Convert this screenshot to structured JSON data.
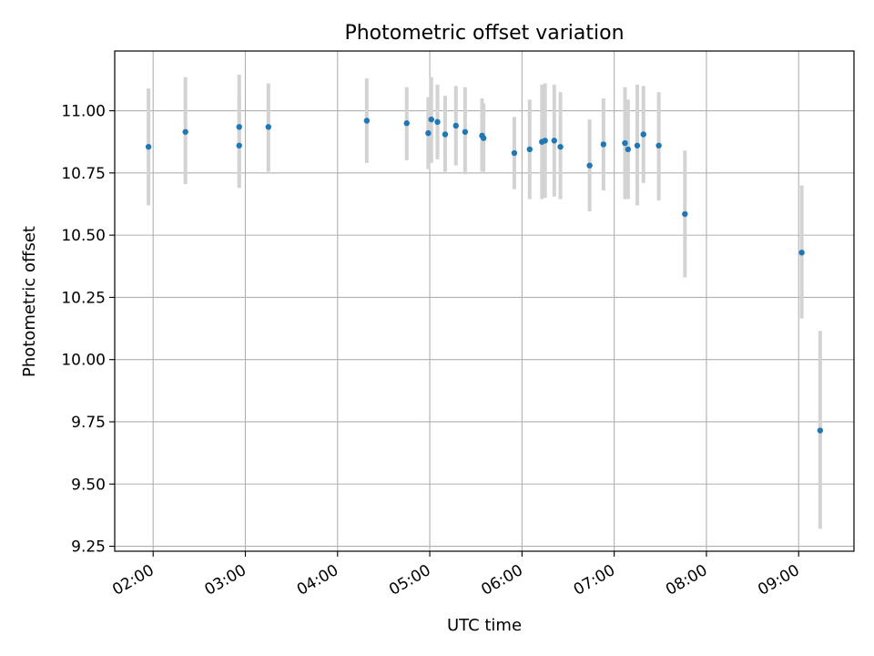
{
  "chart_data": {
    "type": "scatter",
    "title": "Photometric offset variation",
    "xlabel": "UTC time",
    "ylabel": "Photometric offset",
    "x_axis_kind": "time",
    "xlim": [
      "01:35",
      "09:36"
    ],
    "ylim": [
      9.23,
      11.24
    ],
    "grid": true,
    "x_ticks": [
      "02:00",
      "03:00",
      "04:00",
      "05:00",
      "06:00",
      "07:00",
      "08:00",
      "09:00"
    ],
    "y_ticks": [
      9.25,
      9.5,
      9.75,
      10.0,
      10.25,
      10.5,
      10.75,
      11.0
    ],
    "y_tick_labels": [
      "9.25",
      "9.50",
      "9.75",
      "10.00",
      "10.25",
      "10.50",
      "10.75",
      "11.00"
    ],
    "colors": {
      "marker": "#1f77b4",
      "errorbar": "#d3d3d3",
      "grid": "#b0b0b0"
    },
    "series": [
      {
        "points": [
          {
            "x": "01:57",
            "y": 10.855,
            "lo": 10.62,
            "hi": 11.09
          },
          {
            "x": "02:21",
            "y": 10.915,
            "lo": 10.705,
            "hi": 11.135
          },
          {
            "x": "02:56",
            "y": 10.935,
            "lo": 10.705,
            "hi": 11.145
          },
          {
            "x": "02:56",
            "y": 10.86,
            "lo": 10.69,
            "hi": 11.06
          },
          {
            "x": "03:15",
            "y": 10.935,
            "lo": 10.755,
            "hi": 11.11
          },
          {
            "x": "04:19",
            "y": 10.96,
            "lo": 10.79,
            "hi": 11.13
          },
          {
            "x": "04:45",
            "y": 10.95,
            "lo": 10.8,
            "hi": 11.095
          },
          {
            "x": "04:59",
            "y": 10.91,
            "lo": 10.765,
            "hi": 11.055
          },
          {
            "x": "05:01",
            "y": 10.965,
            "lo": 10.79,
            "hi": 11.135
          },
          {
            "x": "05:05",
            "y": 10.955,
            "lo": 10.805,
            "hi": 11.105
          },
          {
            "x": "05:10",
            "y": 10.905,
            "lo": 10.755,
            "hi": 11.06
          },
          {
            "x": "05:17",
            "y": 10.94,
            "lo": 10.78,
            "hi": 11.1
          },
          {
            "x": "05:23",
            "y": 10.915,
            "lo": 10.745,
            "hi": 11.095
          },
          {
            "x": "05:34",
            "y": 10.9,
            "lo": 10.755,
            "hi": 11.05
          },
          {
            "x": "05:35",
            "y": 10.89,
            "lo": 10.755,
            "hi": 11.03
          },
          {
            "x": "05:55",
            "y": 10.83,
            "lo": 10.685,
            "hi": 10.975
          },
          {
            "x": "06:05",
            "y": 10.845,
            "lo": 10.645,
            "hi": 11.045
          },
          {
            "x": "06:13",
            "y": 10.875,
            "lo": 10.645,
            "hi": 11.105
          },
          {
            "x": "06:15",
            "y": 10.88,
            "lo": 10.65,
            "hi": 11.11
          },
          {
            "x": "06:21",
            "y": 10.88,
            "lo": 10.655,
            "hi": 11.105
          },
          {
            "x": "06:25",
            "y": 10.855,
            "lo": 10.645,
            "hi": 11.075
          },
          {
            "x": "06:44",
            "y": 10.78,
            "lo": 10.595,
            "hi": 10.965
          },
          {
            "x": "06:53",
            "y": 10.865,
            "lo": 10.68,
            "hi": 11.05
          },
          {
            "x": "07:07",
            "y": 10.87,
            "lo": 10.645,
            "hi": 11.095
          },
          {
            "x": "07:09",
            "y": 10.845,
            "lo": 10.645,
            "hi": 11.045
          },
          {
            "x": "07:15",
            "y": 10.86,
            "lo": 10.62,
            "hi": 11.105
          },
          {
            "x": "07:19",
            "y": 10.905,
            "lo": 10.71,
            "hi": 11.1
          },
          {
            "x": "07:29",
            "y": 10.86,
            "lo": 10.64,
            "hi": 11.075
          },
          {
            "x": "07:46",
            "y": 10.585,
            "lo": 10.33,
            "hi": 10.84
          },
          {
            "x": "09:02",
            "y": 10.43,
            "lo": 10.165,
            "hi": 10.7
          },
          {
            "x": "09:14",
            "y": 9.715,
            "lo": 9.32,
            "hi": 10.115
          }
        ]
      }
    ]
  }
}
